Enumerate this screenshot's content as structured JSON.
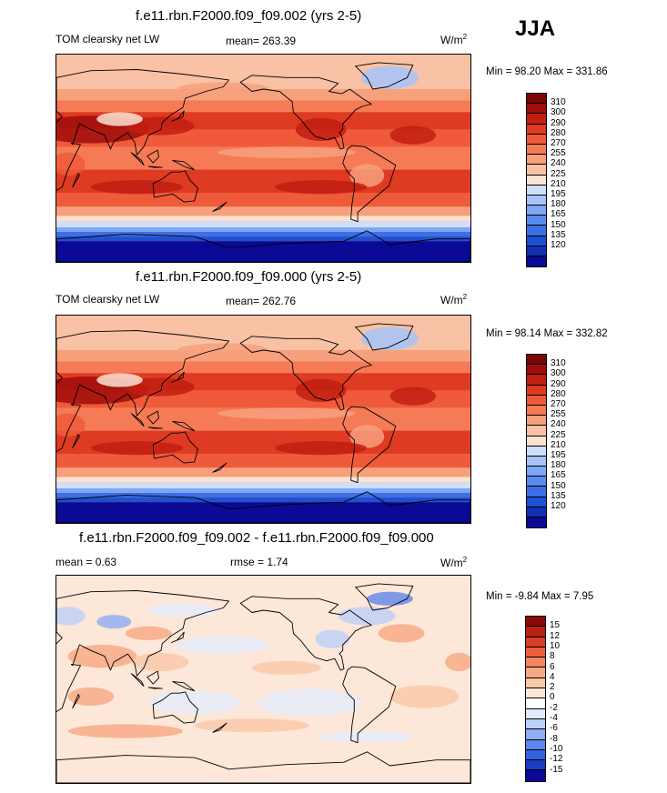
{
  "season": "JJA",
  "units_base": "W/m",
  "units_exp": "2",
  "palettes": {
    "abs": [
      "#0a0a96",
      "#1230b4",
      "#1e50d2",
      "#3c6ee6",
      "#5a8cf0",
      "#7ea6f5",
      "#a6c4fa",
      "#cddffc",
      "#fbe3d2",
      "#f9c2a4",
      "#f7a07c",
      "#f47b56",
      "#ef5a3a",
      "#de3b22",
      "#c21f12",
      "#a00d0a",
      "#7a0606"
    ],
    "diff": [
      "#0a0a96",
      "#1a3cc4",
      "#3560e0",
      "#5f86ec",
      "#8fadf4",
      "#bccffa",
      "#e3ecfd",
      "#ffffff",
      "#fde7d8",
      "#fbc8a8",
      "#f8a783",
      "#f4845f",
      "#ec5e3e",
      "#d73e25",
      "#b8210f",
      "#8a0a06"
    ]
  },
  "panels": [
    {
      "title": "f.e11.rbn.F2000.f09_f09.002 (yrs 2-5)",
      "left_label": "TOM clearsky net LW",
      "center_label": "mean= 263.39",
      "minmax": "Min =  98.20 Max = 331.86",
      "colorbar_labels": [
        "310",
        "300",
        "290",
        "280",
        "270",
        "255",
        "240",
        "225",
        "210",
        "195",
        "180",
        "165",
        "150",
        "135",
        "120"
      ]
    },
    {
      "title": "f.e11.rbn.F2000.f09_f09.000 (yrs 2-5)",
      "left_label": "TOM clearsky net LW",
      "center_label": "mean= 262.76",
      "minmax": "Min =  98.14 Max = 332.82",
      "colorbar_labels": [
        "310",
        "300",
        "290",
        "280",
        "270",
        "255",
        "240",
        "225",
        "210",
        "195",
        "180",
        "165",
        "150",
        "135",
        "120"
      ]
    },
    {
      "title": "f.e11.rbn.F2000.f09_f09.002 - f.e11.rbn.F2000.f09_f09.000",
      "left_label": "mean =   0.63",
      "center_label": "rmse =   1.74",
      "minmax": "Min =  -9.84 Max =   7.95",
      "colorbar_labels": [
        "15",
        "12",
        "10",
        "8",
        "6",
        "4",
        "2",
        "0",
        "-2",
        "-4",
        "-6",
        "-8",
        "-10",
        "-12",
        "-15"
      ]
    }
  ],
  "chart_data": [
    {
      "type": "heatmap",
      "title": "f.e11.rbn.F2000.f09_f09.002 (yrs 2-5)",
      "variable": "TOM clearsky net LW",
      "season": "JJA",
      "units": "W/m2",
      "mean": 263.39,
      "min": 98.2,
      "max": 331.86,
      "colorbar_levels": [
        120,
        135,
        150,
        165,
        180,
        195,
        210,
        225,
        240,
        255,
        270,
        280,
        290,
        300,
        310
      ]
    },
    {
      "type": "heatmap",
      "title": "f.e11.rbn.F2000.f09_f09.000 (yrs 2-5)",
      "variable": "TOM clearsky net LW",
      "season": "JJA",
      "units": "W/m2",
      "mean": 262.76,
      "min": 98.14,
      "max": 332.82,
      "colorbar_levels": [
        120,
        135,
        150,
        165,
        180,
        195,
        210,
        225,
        240,
        255,
        270,
        280,
        290,
        300,
        310
      ]
    },
    {
      "type": "heatmap",
      "title": "f.e11.rbn.F2000.f09_f09.002 - f.e11.rbn.F2000.f09_f09.000",
      "units": "W/m2",
      "mean": 0.63,
      "rmse": 1.74,
      "min": -9.84,
      "max": 7.95,
      "colorbar_levels": [
        -15,
        -12,
        -10,
        -8,
        -6,
        -4,
        -2,
        0,
        2,
        4,
        6,
        8,
        10,
        12,
        15
      ]
    }
  ]
}
